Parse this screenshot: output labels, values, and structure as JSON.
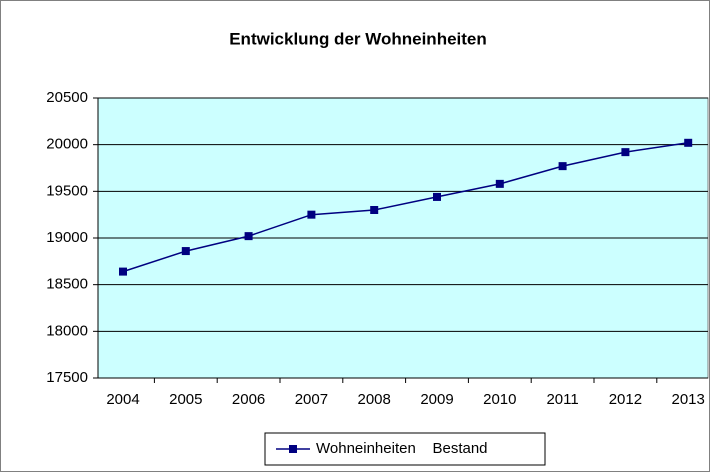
{
  "chart_data": {
    "type": "line",
    "title": "Entwicklung der Wohneinheiten",
    "categories": [
      "2004",
      "2005",
      "2006",
      "2007",
      "2008",
      "2009",
      "2010",
      "2011",
      "2012",
      "2013"
    ],
    "series": [
      {
        "name": "Wohneinheiten    Bestand",
        "color": "#000080",
        "values": [
          18640,
          18860,
          19020,
          19250,
          19300,
          19440,
          19580,
          19770,
          19920,
          20020
        ]
      }
    ],
    "ylim": [
      17500,
      20500
    ],
    "yticks": [
      17500,
      18000,
      18500,
      19000,
      19500,
      20000,
      20500
    ],
    "grid": true,
    "plot_background": "#ccffff",
    "legend": "bottom"
  }
}
